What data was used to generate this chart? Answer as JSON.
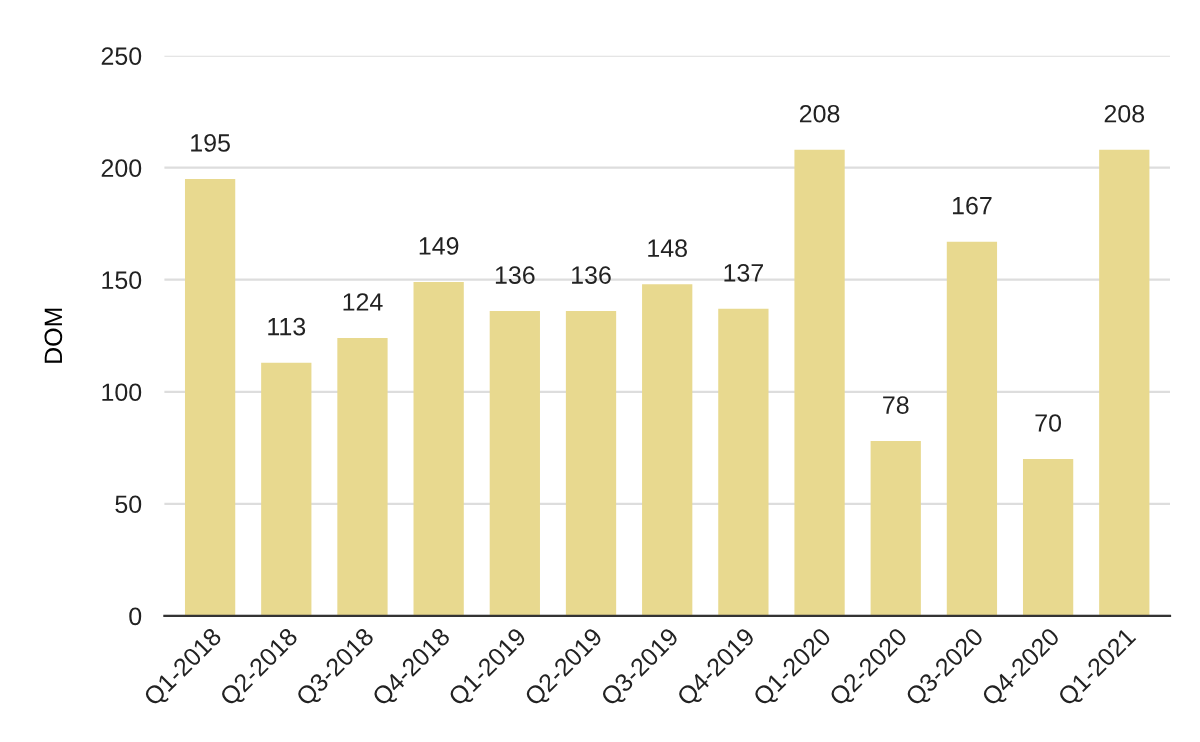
{
  "chart_data": {
    "type": "bar",
    "ylabel": "DOM",
    "categories": [
      "Q1-2018",
      "Q2-2018",
      "Q3-2018",
      "Q4-2018",
      "Q1-2019",
      "Q2-2019",
      "Q3-2019",
      "Q4-2019",
      "Q1-2020",
      "Q2-2020",
      "Q3-2020",
      "Q4-2020",
      "Q1-2021"
    ],
    "values": [
      195,
      113,
      124,
      149,
      136,
      136,
      148,
      137,
      208,
      78,
      167,
      70,
      208
    ],
    "color": "#e8d98f",
    "ylim": [
      0,
      250
    ],
    "yticks": [
      0,
      50,
      100,
      150,
      200,
      250
    ],
    "grid": "y",
    "data_labels": true
  }
}
